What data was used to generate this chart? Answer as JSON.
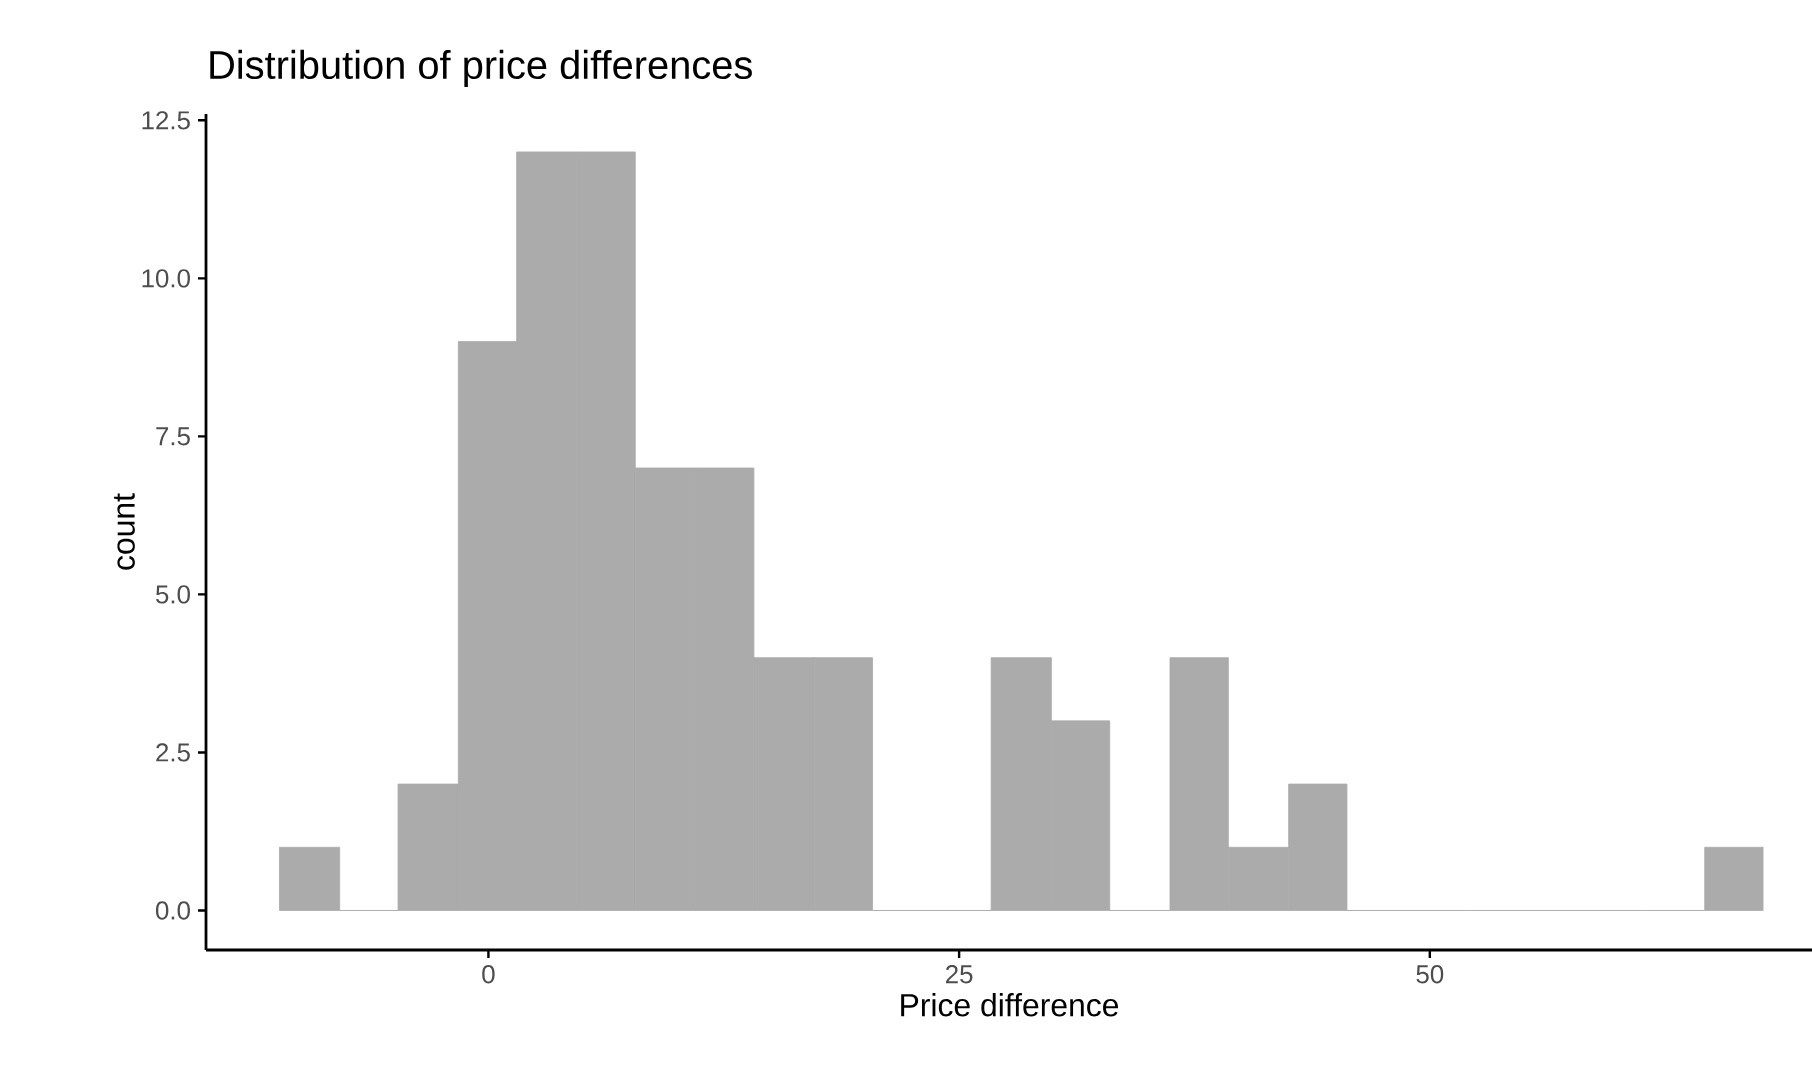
{
  "chart_data": {
    "type": "histogram",
    "title": "Distribution of price differences",
    "xlabel": "Price difference",
    "ylabel": "count",
    "bins": [
      -11.1,
      -7.9,
      -4.8,
      -1.6,
      1.5,
      4.7,
      7.8,
      11.0,
      14.1,
      17.3,
      20.4,
      23.6,
      26.7,
      29.9,
      33.0,
      36.2,
      39.3,
      42.5,
      45.6,
      48.8,
      52.0,
      55.1,
      58.3,
      61.4,
      64.6,
      67.7
    ],
    "values": [
      1,
      0,
      2,
      9,
      12,
      12,
      7,
      7,
      4,
      4,
      0,
      0,
      4,
      3,
      0,
      4,
      1,
      2,
      0,
      0,
      0,
      0,
      0,
      0,
      1
    ],
    "color": "#ababab",
    "xlim": [
      -15,
      70.3
    ],
    "ylim": [
      -0.625,
      12.6
    ],
    "xticks": [
      0,
      25,
      50
    ],
    "yticks": [
      {
        "value": 0,
        "label": "0.0"
      },
      {
        "value": 2.5,
        "label": "2.5"
      },
      {
        "value": 5,
        "label": "5.0"
      },
      {
        "value": 7.5,
        "label": "7.5"
      },
      {
        "value": 10,
        "label": "10.0"
      },
      {
        "value": 12.5,
        "label": "12.5"
      }
    ]
  }
}
